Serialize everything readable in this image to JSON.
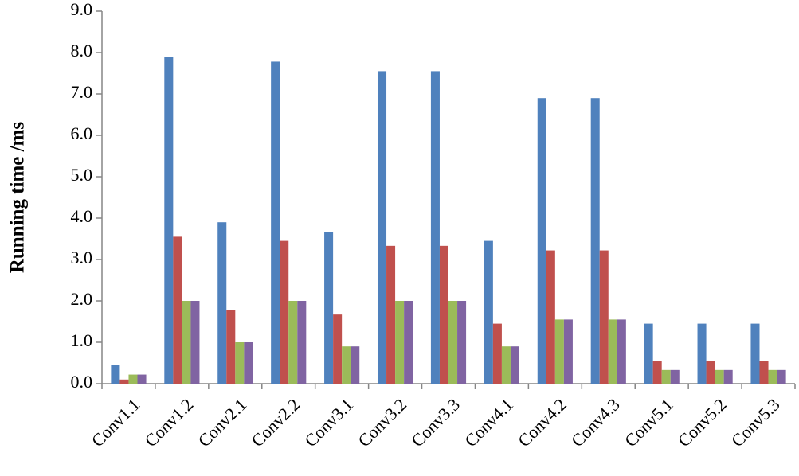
{
  "chart_data": {
    "type": "bar",
    "y_label": "Running time /ms",
    "categories": [
      "Conv1.1",
      "Conv1.2",
      "Conv2.1",
      "Conv2.2",
      "Conv3.1",
      "Conv3.2",
      "Conv3.3",
      "Conv4.1",
      "Conv4.2",
      "Conv4.3",
      "Conv5.1",
      "Conv5.2",
      "Conv5.3"
    ],
    "series": [
      {
        "color": "#4f81bd",
        "values": [
          0.45,
          7.9,
          3.9,
          7.78,
          3.67,
          7.55,
          7.55,
          3.45,
          6.9,
          6.9,
          1.45,
          1.45,
          1.45
        ]
      },
      {
        "color": "#c0504d",
        "values": [
          0.1,
          3.55,
          1.78,
          3.45,
          1.67,
          3.33,
          3.33,
          1.45,
          3.22,
          3.22,
          0.55,
          0.55,
          0.55
        ]
      },
      {
        "color": "#9bbb59",
        "values": [
          0.22,
          2.0,
          1.0,
          2.0,
          0.9,
          2.0,
          2.0,
          0.9,
          1.55,
          1.55,
          0.33,
          0.33,
          0.33
        ]
      },
      {
        "color": "#8064a2",
        "values": [
          0.22,
          2.0,
          1.0,
          2.0,
          0.9,
          2.0,
          2.0,
          0.9,
          1.55,
          1.55,
          0.33,
          0.33,
          0.33
        ]
      }
    ],
    "ylim": [
      0,
      9
    ],
    "yticks": [
      {
        "value": 0,
        "label": "0.0"
      },
      {
        "value": 1,
        "label": "1.0"
      },
      {
        "value": 2,
        "label": "2.0"
      },
      {
        "value": 3,
        "label": "3.0"
      },
      {
        "value": 4,
        "label": "4.0"
      },
      {
        "value": 5,
        "label": "5.0"
      },
      {
        "value": 6,
        "label": "6.0"
      },
      {
        "value": 7,
        "label": "7.0"
      },
      {
        "value": 8,
        "label": "8.0"
      },
      {
        "value": 9,
        "label": "9.0"
      }
    ],
    "grid": false
  }
}
